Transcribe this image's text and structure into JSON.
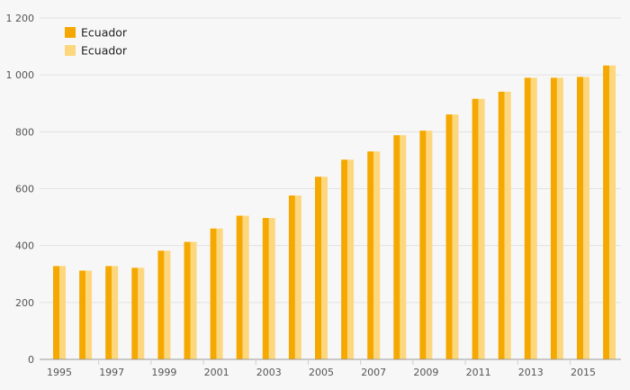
{
  "chart_data": {
    "type": "bar",
    "categories": [
      "1995",
      "1996",
      "1997",
      "1998",
      "1999",
      "2000",
      "2001",
      "2002",
      "2003",
      "2004",
      "2005",
      "2006",
      "2007",
      "2008",
      "2009",
      "2010",
      "2011",
      "2012",
      "2013",
      "2014",
      "2015",
      "2016"
    ],
    "x_tick_labels": [
      "1995",
      "1997",
      "1999",
      "2001",
      "2003",
      "2005",
      "2007",
      "2009",
      "2011",
      "2013",
      "2015"
    ],
    "y_tick_labels": [
      "0",
      "200",
      "400",
      "600",
      "800",
      "1 000",
      "1 200"
    ],
    "y_ticks": [
      0,
      200,
      400,
      600,
      800,
      1000,
      1200
    ],
    "ylim": [
      0,
      1200
    ],
    "grid": true,
    "legend_position": "top-left",
    "title": "",
    "xlabel": "",
    "ylabel": "",
    "series": [
      {
        "name": "Ecuador",
        "color": "#f5a800",
        "values": [
          328,
          312,
          328,
          322,
          382,
          413,
          460,
          505,
          497,
          576,
          642,
          702,
          731,
          788,
          804,
          861,
          916,
          941,
          990,
          990,
          993,
          1033
        ]
      },
      {
        "name": "Ecuador",
        "color": "#fdd77e",
        "values": [
          328,
          312,
          328,
          322,
          382,
          413,
          460,
          505,
          497,
          576,
          642,
          702,
          731,
          788,
          804,
          861,
          916,
          941,
          990,
          990,
          993,
          1033
        ]
      }
    ]
  }
}
